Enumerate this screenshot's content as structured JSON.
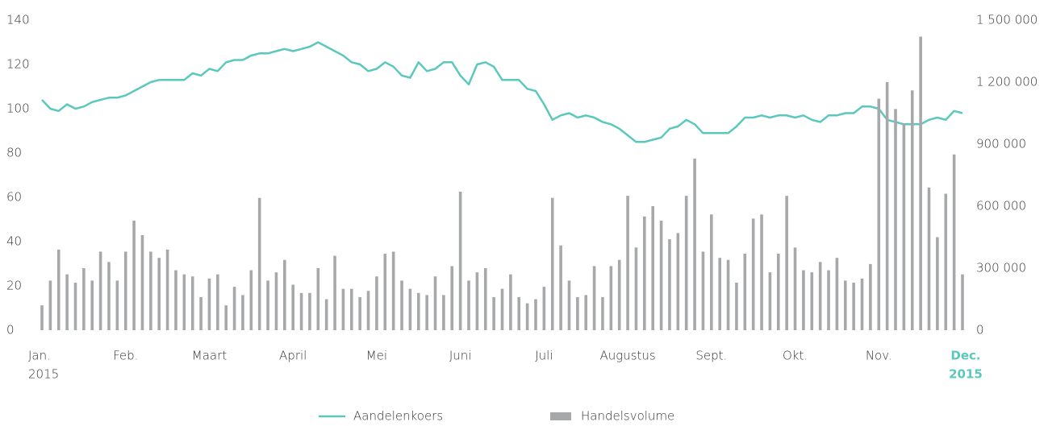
{
  "chart_data": {
    "type": "bar-line",
    "categories": [
      "Jan.",
      null,
      null,
      null,
      null,
      null,
      null,
      null,
      null,
      null,
      "Feb.",
      null,
      null,
      null,
      null,
      null,
      null,
      null,
      null,
      null,
      "Maart",
      null,
      null,
      null,
      null,
      null,
      null,
      null,
      null,
      null,
      "April",
      null,
      null,
      null,
      null,
      null,
      null,
      null,
      null,
      null,
      "Mei",
      null,
      null,
      null,
      null,
      null,
      null,
      null,
      null,
      null,
      "Juni",
      null,
      null,
      null,
      null,
      null,
      null,
      null,
      null,
      null,
      "Juli",
      null,
      null,
      null,
      null,
      null,
      null,
      null,
      null,
      null,
      "Augustus",
      null,
      null,
      null,
      null,
      null,
      null,
      null,
      null,
      null,
      "Sept.",
      null,
      null,
      null,
      null,
      null,
      null,
      null,
      null,
      null,
      "Okt.",
      null,
      null,
      null,
      null,
      null,
      null,
      null,
      null,
      null,
      "Nov.",
      null,
      null,
      null,
      null,
      null,
      null,
      null,
      null,
      null,
      "Dec."
    ],
    "year": "2015",
    "highlight_color": "#5bc8bd",
    "series": [
      {
        "name": "Aandelenkoers",
        "color": "#5bc8bd",
        "axis": "y",
        "kind": "line",
        "values": [
          104,
          100,
          99,
          102,
          100,
          101,
          103,
          104,
          105,
          105,
          106,
          108,
          110,
          112,
          113,
          113,
          113,
          113,
          116,
          115,
          118,
          117,
          121,
          122,
          122,
          124,
          125,
          125,
          126,
          127,
          126,
          127,
          128,
          130,
          128,
          126,
          124,
          121,
          120,
          117,
          118,
          121,
          119,
          115,
          114,
          121,
          117,
          118,
          121,
          121,
          115,
          111,
          120,
          121,
          119,
          113,
          113,
          113,
          109,
          108,
          102,
          95,
          97,
          98,
          96,
          97,
          96,
          94,
          93,
          91,
          88,
          85,
          85,
          86,
          87,
          91,
          92,
          95,
          93,
          89,
          89,
          89,
          89,
          92,
          96,
          96,
          97,
          96,
          97,
          97,
          96,
          97,
          95,
          94,
          97,
          97,
          98,
          98,
          101,
          101,
          100,
          95,
          94,
          93,
          93,
          93,
          95,
          96,
          95,
          99,
          98
        ]
      },
      {
        "name": "Handelsvolume",
        "color": "#a7a8aa",
        "axis": "y2",
        "kind": "bar",
        "values": [
          120000,
          240000,
          390000,
          270000,
          230000,
          300000,
          240000,
          380000,
          330000,
          240000,
          380000,
          530000,
          460000,
          380000,
          350000,
          390000,
          290000,
          270000,
          260000,
          160000,
          250000,
          270000,
          120000,
          210000,
          170000,
          290000,
          640000,
          240000,
          280000,
          340000,
          220000,
          180000,
          180000,
          300000,
          150000,
          360000,
          200000,
          200000,
          160000,
          190000,
          260000,
          370000,
          380000,
          240000,
          200000,
          180000,
          170000,
          260000,
          170000,
          310000,
          670000,
          240000,
          280000,
          300000,
          160000,
          200000,
          270000,
          160000,
          130000,
          150000,
          210000,
          640000,
          410000,
          240000,
          160000,
          170000,
          310000,
          160000,
          310000,
          340000,
          650000,
          400000,
          550000,
          600000,
          530000,
          440000,
          470000,
          650000,
          830000,
          380000,
          560000,
          350000,
          340000,
          230000,
          370000,
          540000,
          560000,
          280000,
          370000,
          650000,
          400000,
          290000,
          280000,
          330000,
          290000,
          350000,
          240000,
          230000,
          250000,
          320000,
          1120000,
          1200000,
          1070000,
          1000000,
          1160000,
          1420000,
          690000,
          450000,
          660000,
          850000,
          270000
        ]
      }
    ],
    "ylim": [
      0,
      140
    ],
    "yticks": [
      0,
      20,
      40,
      60,
      80,
      100,
      120,
      140
    ],
    "y2lim": [
      0,
      1500000
    ],
    "y2ticks": [
      0,
      {
        "value": 300000,
        "label": "300 000"
      },
      {
        "value": 600000,
        "label": "600 000"
      },
      {
        "value": 900000,
        "label": "900 000"
      },
      {
        "value": 1200000,
        "label": "1 200 000"
      },
      {
        "value": 1500000,
        "label": "1 500 000"
      }
    ],
    "grid": false,
    "legend": "bottom"
  }
}
